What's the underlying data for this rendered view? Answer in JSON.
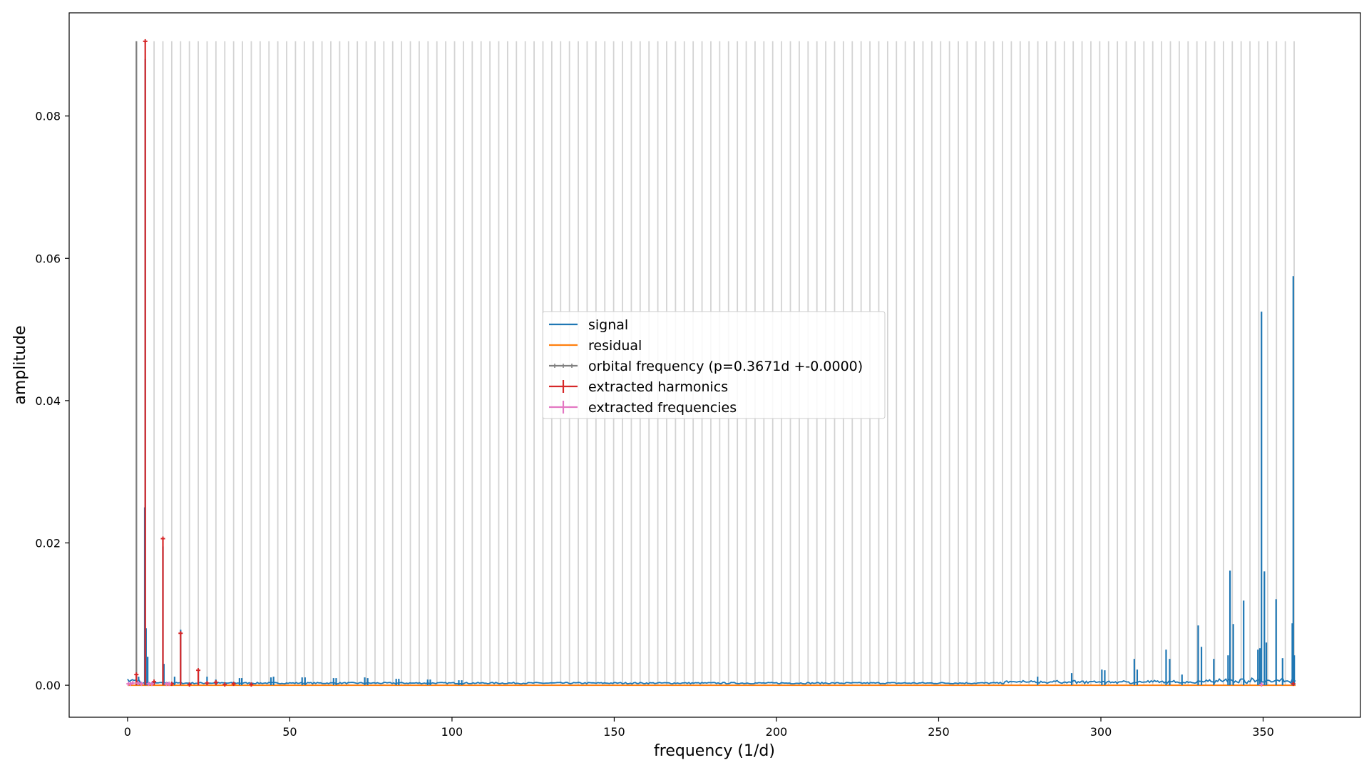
{
  "chart_data": {
    "type": "line",
    "title": "",
    "xlabel": "frequency (1/d)",
    "ylabel": "amplitude",
    "xlim": [
      -18,
      380
    ],
    "ylim": [
      -0.0045,
      0.0945
    ],
    "xticks": [
      0,
      50,
      100,
      150,
      200,
      250,
      300,
      350
    ],
    "yticks": [
      0.0,
      0.02,
      0.04,
      0.06,
      0.08
    ],
    "ytick_labels": [
      "0.00",
      "0.02",
      "0.04",
      "0.06",
      "0.08"
    ],
    "grid": false,
    "legend_position": "center",
    "colors": {
      "signal": "#1f77b4",
      "residual": "#ff7f0e",
      "orbital": "#7f7f7f",
      "harmonics": "#d62728",
      "frequencies": "#e377c2",
      "harmonic_grid": "#d3d3d3"
    },
    "orbital_frequency": {
      "period_d": 0.3671,
      "frequency": 2.724,
      "max_frequency": 360,
      "line_top": 0.0905
    },
    "legend": [
      {
        "label": "signal",
        "style": "line",
        "color": "#1f77b4"
      },
      {
        "label": "residual",
        "style": "line",
        "color": "#ff7f0e"
      },
      {
        "label": "orbital frequency (p=0.3671d +-0.0000)",
        "style": "errorbar-small",
        "color": "#7f7f7f"
      },
      {
        "label": "extracted harmonics",
        "style": "errorbar",
        "color": "#d62728"
      },
      {
        "label": "extracted frequencies",
        "style": "errorbar",
        "color": "#e377c2"
      }
    ],
    "signal_peaks": [
      {
        "x": 2.7,
        "y": 0.0015
      },
      {
        "x": 3.4,
        "y": 0.0012
      },
      {
        "x": 5.45,
        "y": 0.088
      },
      {
        "x": 5.3,
        "y": 0.025
      },
      {
        "x": 5.7,
        "y": 0.008
      },
      {
        "x": 6.2,
        "y": 0.004
      },
      {
        "x": 10.9,
        "y": 0.0195
      },
      {
        "x": 11.2,
        "y": 0.003
      },
      {
        "x": 14.5,
        "y": 0.0012
      },
      {
        "x": 16.35,
        "y": 0.0078
      },
      {
        "x": 21.8,
        "y": 0.0022
      },
      {
        "x": 24.5,
        "y": 0.0012
      },
      {
        "x": 27.2,
        "y": 0.0008
      },
      {
        "x": 34.5,
        "y": 0.001
      },
      {
        "x": 35.2,
        "y": 0.001
      },
      {
        "x": 44.2,
        "y": 0.0011
      },
      {
        "x": 45.0,
        "y": 0.0012
      },
      {
        "x": 53.8,
        "y": 0.0011
      },
      {
        "x": 54.7,
        "y": 0.0011
      },
      {
        "x": 63.5,
        "y": 0.001
      },
      {
        "x": 64.3,
        "y": 0.001
      },
      {
        "x": 73.1,
        "y": 0.0011
      },
      {
        "x": 74.0,
        "y": 0.001
      },
      {
        "x": 82.8,
        "y": 0.0009
      },
      {
        "x": 83.6,
        "y": 0.0009
      },
      {
        "x": 92.5,
        "y": 0.0008
      },
      {
        "x": 93.3,
        "y": 0.0008
      },
      {
        "x": 102.1,
        "y": 0.0007
      },
      {
        "x": 103.0,
        "y": 0.0007
      },
      {
        "x": 280.5,
        "y": 0.0012
      },
      {
        "x": 291.0,
        "y": 0.0017
      },
      {
        "x": 300.3,
        "y": 0.0022
      },
      {
        "x": 301.2,
        "y": 0.0021
      },
      {
        "x": 310.3,
        "y": 0.0037
      },
      {
        "x": 311.2,
        "y": 0.0022
      },
      {
        "x": 320.1,
        "y": 0.005
      },
      {
        "x": 321.2,
        "y": 0.0037
      },
      {
        "x": 325.0,
        "y": 0.0015
      },
      {
        "x": 330.0,
        "y": 0.0084
      },
      {
        "x": 331.0,
        "y": 0.0054
      },
      {
        "x": 334.8,
        "y": 0.0037
      },
      {
        "x": 339.2,
        "y": 0.0042
      },
      {
        "x": 339.8,
        "y": 0.0161
      },
      {
        "x": 340.8,
        "y": 0.0086
      },
      {
        "x": 344.0,
        "y": 0.0119
      },
      {
        "x": 348.4,
        "y": 0.005
      },
      {
        "x": 349.0,
        "y": 0.0052
      },
      {
        "x": 349.5,
        "y": 0.0525
      },
      {
        "x": 350.4,
        "y": 0.016
      },
      {
        "x": 351.0,
        "y": 0.006
      },
      {
        "x": 354.0,
        "y": 0.0121
      },
      {
        "x": 356.0,
        "y": 0.0038
      },
      {
        "x": 359.0,
        "y": 0.0087
      },
      {
        "x": 359.3,
        "y": 0.0575
      },
      {
        "x": 359.6,
        "y": 0.0042
      }
    ],
    "extracted_harmonics": [
      {
        "x": 2.72,
        "y": 0.0015
      },
      {
        "x": 5.45,
        "y": 0.0905
      },
      {
        "x": 8.17,
        "y": 0.0005
      },
      {
        "x": 10.9,
        "y": 0.0206
      },
      {
        "x": 13.62,
        "y": 0.0002
      },
      {
        "x": 16.35,
        "y": 0.0073
      },
      {
        "x": 19.07,
        "y": 0.0001
      },
      {
        "x": 21.79,
        "y": 0.0021
      },
      {
        "x": 24.52,
        "y": 0.0003
      },
      {
        "x": 27.24,
        "y": 0.0004
      },
      {
        "x": 29.96,
        "y": 0.0001
      },
      {
        "x": 32.69,
        "y": 0.0002
      },
      {
        "x": 38.13,
        "y": 0.0001
      },
      {
        "x": 359.3,
        "y": 0.0002
      }
    ],
    "extracted_frequencies": [
      {
        "x": 0.3,
        "y": 0.0002
      },
      {
        "x": 0.9,
        "y": 0.0002
      },
      {
        "x": 1.6,
        "y": 0.0003
      },
      {
        "x": 3.3,
        "y": 0.0003
      },
      {
        "x": 4.3,
        "y": 0.0002
      },
      {
        "x": 6.5,
        "y": 0.0002
      },
      {
        "x": 7.5,
        "y": 0.0002
      },
      {
        "x": 12.0,
        "y": 0.0002
      },
      {
        "x": 12.8,
        "y": 0.0002
      },
      {
        "x": 349.5,
        "y": 0.0001
      }
    ]
  }
}
